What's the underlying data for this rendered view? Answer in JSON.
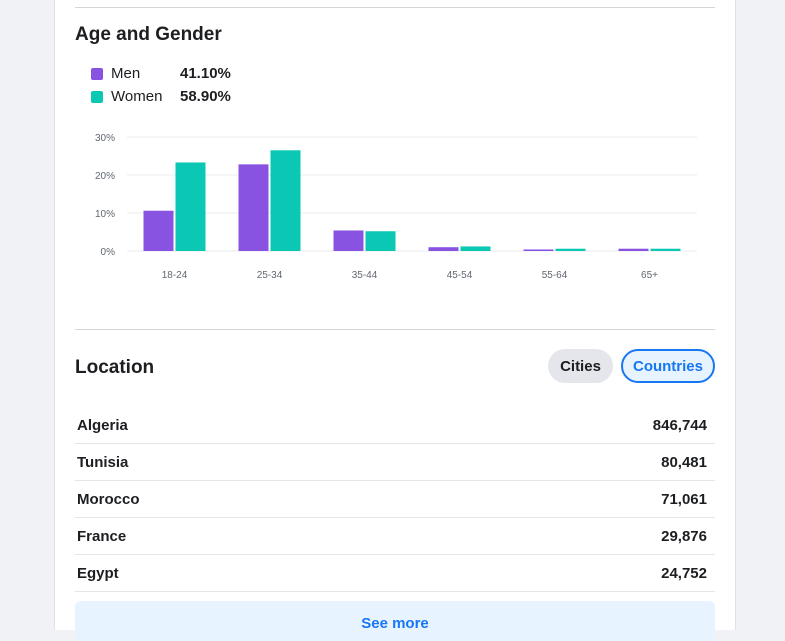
{
  "age_gender": {
    "title": "Age and Gender",
    "legend": [
      {
        "label": "Men",
        "value": "41.10%",
        "color": "#8753e0"
      },
      {
        "label": "Women",
        "value": "58.90%",
        "color": "#0ac8b4"
      }
    ]
  },
  "chart_data": {
    "type": "bar",
    "categories": [
      "18-24",
      "25-34",
      "35-44",
      "45-54",
      "55-64",
      "65+"
    ],
    "series": [
      {
        "name": "Men",
        "color": "#8753e0",
        "values": [
          10.6,
          22.8,
          5.4,
          1.0,
          0.4,
          0.6
        ]
      },
      {
        "name": "Women",
        "color": "#0ac8b4",
        "values": [
          23.3,
          26.5,
          5.2,
          1.2,
          0.6,
          0.6
        ]
      }
    ],
    "y_ticks": [
      "0%",
      "10%",
      "20%",
      "30%"
    ],
    "ylim": [
      0,
      30
    ],
    "grid": true
  },
  "location": {
    "title": "Location",
    "tabs": {
      "cities": "Cities",
      "countries": "Countries"
    },
    "rows": [
      {
        "name": "Algeria",
        "value": "846,744"
      },
      {
        "name": "Tunisia",
        "value": "80,481"
      },
      {
        "name": "Morocco",
        "value": "71,061"
      },
      {
        "name": "France",
        "value": "29,876"
      },
      {
        "name": "Egypt",
        "value": "24,752"
      }
    ],
    "see_more": "See more"
  }
}
